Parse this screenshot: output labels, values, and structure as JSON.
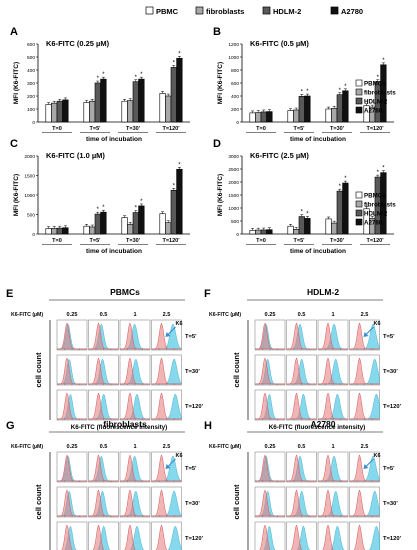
{
  "legend": [
    "PBMC",
    "fibroblasts",
    "HDLM-2",
    "A2780"
  ],
  "bar_panels": [
    {
      "letter": "A",
      "title": "K6-FITC (0.25 µM)"
    },
    {
      "letter": "B",
      "title": "K6-FITC (0.5 µM)"
    },
    {
      "letter": "C",
      "title": "K6-FITC (1.0 µM)"
    },
    {
      "letter": "D",
      "title": "K6-FITC (2.5 µM)"
    }
  ],
  "inset_legend": [
    "PBMCs",
    "fibroblasts",
    "HDLM-2",
    "A2780"
  ],
  "histo_panels": [
    {
      "letter": "E",
      "title": "PBMCs"
    },
    {
      "letter": "F",
      "title": "HDLM-2"
    },
    {
      "letter": "G",
      "title": "fibroblasts"
    },
    {
      "letter": "H",
      "title": "A2780"
    }
  ],
  "histo_conc_label": "K6-FITC (µM)",
  "histo_concs": [
    "0.25",
    "0.5",
    "1",
    "2.5"
  ],
  "histo_times": [
    "T=5'",
    "T=30'",
    "T=120'"
  ],
  "histo_ylabel": "cell count",
  "histo_xlabel": "K6-FITC (fluorescence intensity)",
  "histo_arrow_label": "K6",
  "colors": {
    "s1": "#ffffff",
    "s2": "#a8a8a8",
    "s3": "#595959",
    "s4": "#111111",
    "red": "#e8787a",
    "cyan": "#5ecbe6"
  },
  "chart_data": [
    {
      "type": "bar",
      "title": "K6-FITC (0.25 µM)",
      "xlabel": "time of incubation",
      "ylabel": "MFI (K6-FITC)",
      "ylim": [
        0,
        600
      ],
      "yticks": [
        0,
        100,
        200,
        300,
        400,
        500,
        600
      ],
      "categories": [
        "T=0",
        "T=5'",
        "T=30'",
        "T=120'"
      ],
      "series": [
        {
          "name": "PBMCs",
          "values": [
            135,
            150,
            160,
            220
          ]
        },
        {
          "name": "fibroblasts",
          "values": [
            145,
            160,
            165,
            200
          ]
        },
        {
          "name": "HDLM-2",
          "values": [
            160,
            300,
            310,
            420
          ]
        },
        {
          "name": "A2780",
          "values": [
            170,
            330,
            330,
            490
          ]
        }
      ]
    },
    {
      "type": "bar",
      "title": "K6-FITC (0.5 µM)",
      "xlabel": "time of incubation",
      "ylabel": "MFI (K6-FITC)",
      "ylim": [
        0,
        1200
      ],
      "yticks": [
        0,
        200,
        400,
        600,
        800,
        1000,
        1200
      ],
      "categories": [
        "T=0",
        "T=5'",
        "T=30'",
        "T=120'"
      ],
      "series": [
        {
          "name": "PBMCs",
          "values": [
            140,
            175,
            200,
            250
          ]
        },
        {
          "name": "fibroblasts",
          "values": [
            145,
            185,
            210,
            230
          ]
        },
        {
          "name": "HDLM-2",
          "values": [
            155,
            395,
            420,
            620
          ]
        },
        {
          "name": "A2780",
          "values": [
            160,
            400,
            480,
            880
          ]
        }
      ]
    },
    {
      "type": "bar",
      "title": "K6-FITC (1.0 µM)",
      "xlabel": "time of incubation",
      "ylabel": "MFI (K6-FITC)",
      "ylim": [
        0,
        2000
      ],
      "yticks": [
        0,
        500,
        1000,
        1500,
        2000
      ],
      "categories": [
        "T=0",
        "T=5'",
        "T=30'",
        "T=120'"
      ],
      "series": [
        {
          "name": "PBMCs",
          "values": [
            140,
            200,
            420,
            520
          ]
        },
        {
          "name": "fibroblasts",
          "values": [
            145,
            180,
            250,
            290
          ]
        },
        {
          "name": "HDLM-2",
          "values": [
            150,
            510,
            550,
            1120
          ]
        },
        {
          "name": "A2780",
          "values": [
            160,
            560,
            720,
            1660
          ]
        }
      ]
    },
    {
      "type": "bar",
      "title": "K6-FITC (2.5 µM)",
      "xlabel": "time of incubation",
      "ylabel": "MFI (K6-FITC)",
      "ylim": [
        0,
        3000
      ],
      "yticks": [
        0,
        500,
        1000,
        1500,
        2000,
        2500,
        3000
      ],
      "categories": [
        "T=0",
        "T=5'",
        "T=30'",
        "T=120'"
      ],
      "series": [
        {
          "name": "PBMCs",
          "values": [
            140,
            300,
            580,
            970
          ]
        },
        {
          "name": "fibroblasts",
          "values": [
            150,
            180,
            420,
            600
          ]
        },
        {
          "name": "HDLM-2",
          "values": [
            155,
            670,
            1650,
            2190
          ]
        },
        {
          "name": "A2780",
          "values": [
            165,
            600,
            1960,
            2360
          ]
        }
      ]
    }
  ]
}
